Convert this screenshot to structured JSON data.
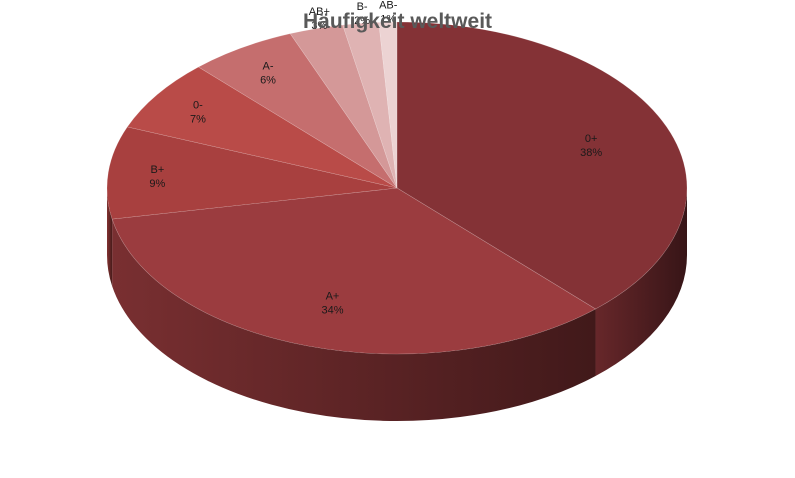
{
  "chart_data": {
    "type": "pie",
    "title": "Häufigkeit weltweit",
    "three_d": true,
    "legend": "none",
    "slices": [
      {
        "label": "0+",
        "percent_label": "38%",
        "value": 38,
        "color": "#843236"
      },
      {
        "label": "A+",
        "percent_label": "34%",
        "value": 34,
        "color": "#9b3c3f"
      },
      {
        "label": "B+",
        "percent_label": "9%",
        "value": 9,
        "color": "#a8403f"
      },
      {
        "label": "0-",
        "percent_label": "7%",
        "value": 7,
        "color": "#b94b48"
      },
      {
        "label": "A-",
        "percent_label": "6%",
        "value": 6,
        "color": "#c56e6e"
      },
      {
        "label": "AB+",
        "percent_label": "3%",
        "value": 3,
        "color": "#d49898"
      },
      {
        "label": "B-",
        "percent_label": "2%",
        "value": 2,
        "color": "#dfb3b3"
      },
      {
        "label": "AB-",
        "percent_label": "1%",
        "value": 1,
        "color": "#ecd3d3"
      }
    ]
  }
}
